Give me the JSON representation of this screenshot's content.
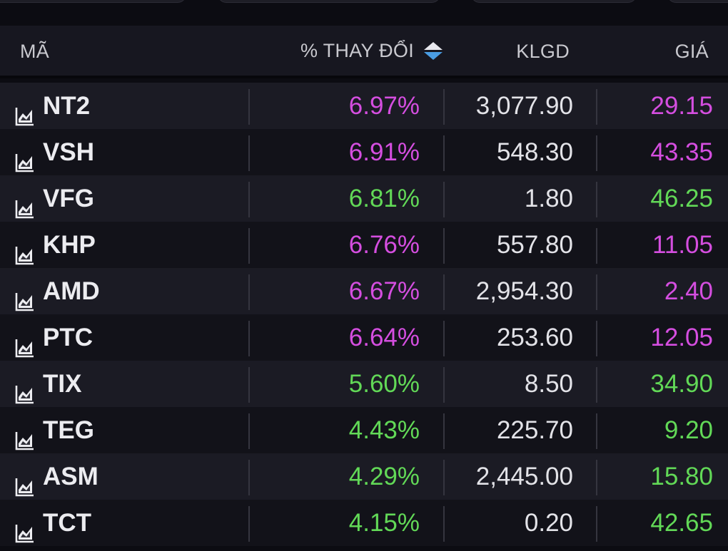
{
  "colors": {
    "up": "#62d957",
    "ceiling": "#d54ee0",
    "neutral": "#e3e3e8"
  },
  "header": {
    "symbol_label": "MÃ",
    "change_label": "% THAY ĐỔI",
    "volume_label": "KLGD",
    "price_label": "GIÁ",
    "sort_icon": "sort-up-down-icon"
  },
  "rows": [
    {
      "symbol": "NT2",
      "change": "6.97%",
      "volume": "3,077.90",
      "price": "29.15",
      "status": "ceiling"
    },
    {
      "symbol": "VSH",
      "change": "6.91%",
      "volume": "548.30",
      "price": "43.35",
      "status": "ceiling"
    },
    {
      "symbol": "VFG",
      "change": "6.81%",
      "volume": "1.80",
      "price": "46.25",
      "status": "up"
    },
    {
      "symbol": "KHP",
      "change": "6.76%",
      "volume": "557.80",
      "price": "11.05",
      "status": "ceiling"
    },
    {
      "symbol": "AMD",
      "change": "6.67%",
      "volume": "2,954.30",
      "price": "2.40",
      "status": "ceiling"
    },
    {
      "symbol": "PTC",
      "change": "6.64%",
      "volume": "253.60",
      "price": "12.05",
      "status": "ceiling"
    },
    {
      "symbol": "TIX",
      "change": "5.60%",
      "volume": "8.50",
      "price": "34.90",
      "status": "up"
    },
    {
      "symbol": "TEG",
      "change": "4.43%",
      "volume": "225.70",
      "price": "9.20",
      "status": "up"
    },
    {
      "symbol": "ASM",
      "change": "4.29%",
      "volume": "2,445.00",
      "price": "15.80",
      "status": "up"
    },
    {
      "symbol": "TCT",
      "change": "4.15%",
      "volume": "0.20",
      "price": "42.65",
      "status": "up"
    }
  ]
}
